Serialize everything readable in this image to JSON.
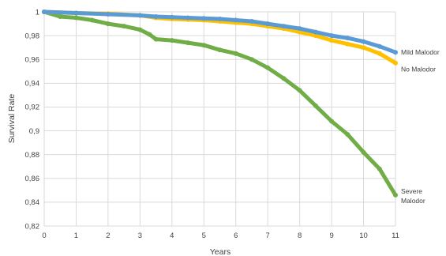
{
  "chart_data": {
    "type": "scatter",
    "title": "",
    "xlabel": "Years",
    "ylabel": "Survival Rate",
    "xlim": [
      0,
      11
    ],
    "ylim": [
      0.82,
      1.0
    ],
    "x_ticks": [
      "0",
      "1",
      "2",
      "3",
      "4",
      "5",
      "6",
      "7",
      "8",
      "9",
      "10",
      "11"
    ],
    "y_ticks": [
      "0,82",
      "0,84",
      "0,86",
      "0,88",
      "0,9",
      "0,92",
      "0,94",
      "0,96",
      "0,98",
      "1"
    ],
    "grid": true,
    "series": [
      {
        "name": "Mild Malodor",
        "label_lines": [
          "Mild Malodor"
        ],
        "color": "#5b9bd5",
        "x": [
          0,
          1,
          2,
          3,
          3.5,
          4,
          4.5,
          5,
          5.5,
          6,
          6.5,
          7,
          7.5,
          8,
          8.5,
          9,
          9.5,
          10,
          10.5,
          11
        ],
        "y": [
          1.0,
          0.999,
          0.998,
          0.997,
          0.996,
          0.9955,
          0.995,
          0.9945,
          0.994,
          0.993,
          0.992,
          0.99,
          0.988,
          0.986,
          0.983,
          0.98,
          0.978,
          0.975,
          0.971,
          0.966
        ]
      },
      {
        "name": "No Malodor",
        "label_lines": [
          "No Malodor"
        ],
        "color": "#ffc000",
        "x": [
          0,
          1,
          2,
          3,
          3.5,
          4,
          4.5,
          5,
          5.5,
          6,
          6.5,
          7,
          7.5,
          8,
          8.5,
          9,
          9.5,
          10,
          10.5,
          11
        ],
        "y": [
          1.0,
          0.999,
          0.9985,
          0.997,
          0.995,
          0.994,
          0.9935,
          0.993,
          0.992,
          0.991,
          0.99,
          0.988,
          0.986,
          0.983,
          0.98,
          0.976,
          0.973,
          0.97,
          0.965,
          0.957
        ]
      },
      {
        "name": "Severe Malodor",
        "label_lines": [
          "Severe",
          "Malodor"
        ],
        "color": "#70ad47",
        "x": [
          0,
          0.5,
          1,
          1.5,
          2,
          2.5,
          3,
          3.3,
          3.5,
          4,
          4.5,
          5,
          5.5,
          6,
          6.5,
          7,
          7.5,
          8,
          8.5,
          9,
          9.5,
          10,
          10.5,
          11
        ],
        "y": [
          1.0,
          0.996,
          0.995,
          0.993,
          0.99,
          0.988,
          0.985,
          0.981,
          0.977,
          0.976,
          0.974,
          0.972,
          0.968,
          0.965,
          0.96,
          0.953,
          0.944,
          0.934,
          0.921,
          0.908,
          0.897,
          0.882,
          0.868,
          0.846
        ]
      }
    ]
  }
}
